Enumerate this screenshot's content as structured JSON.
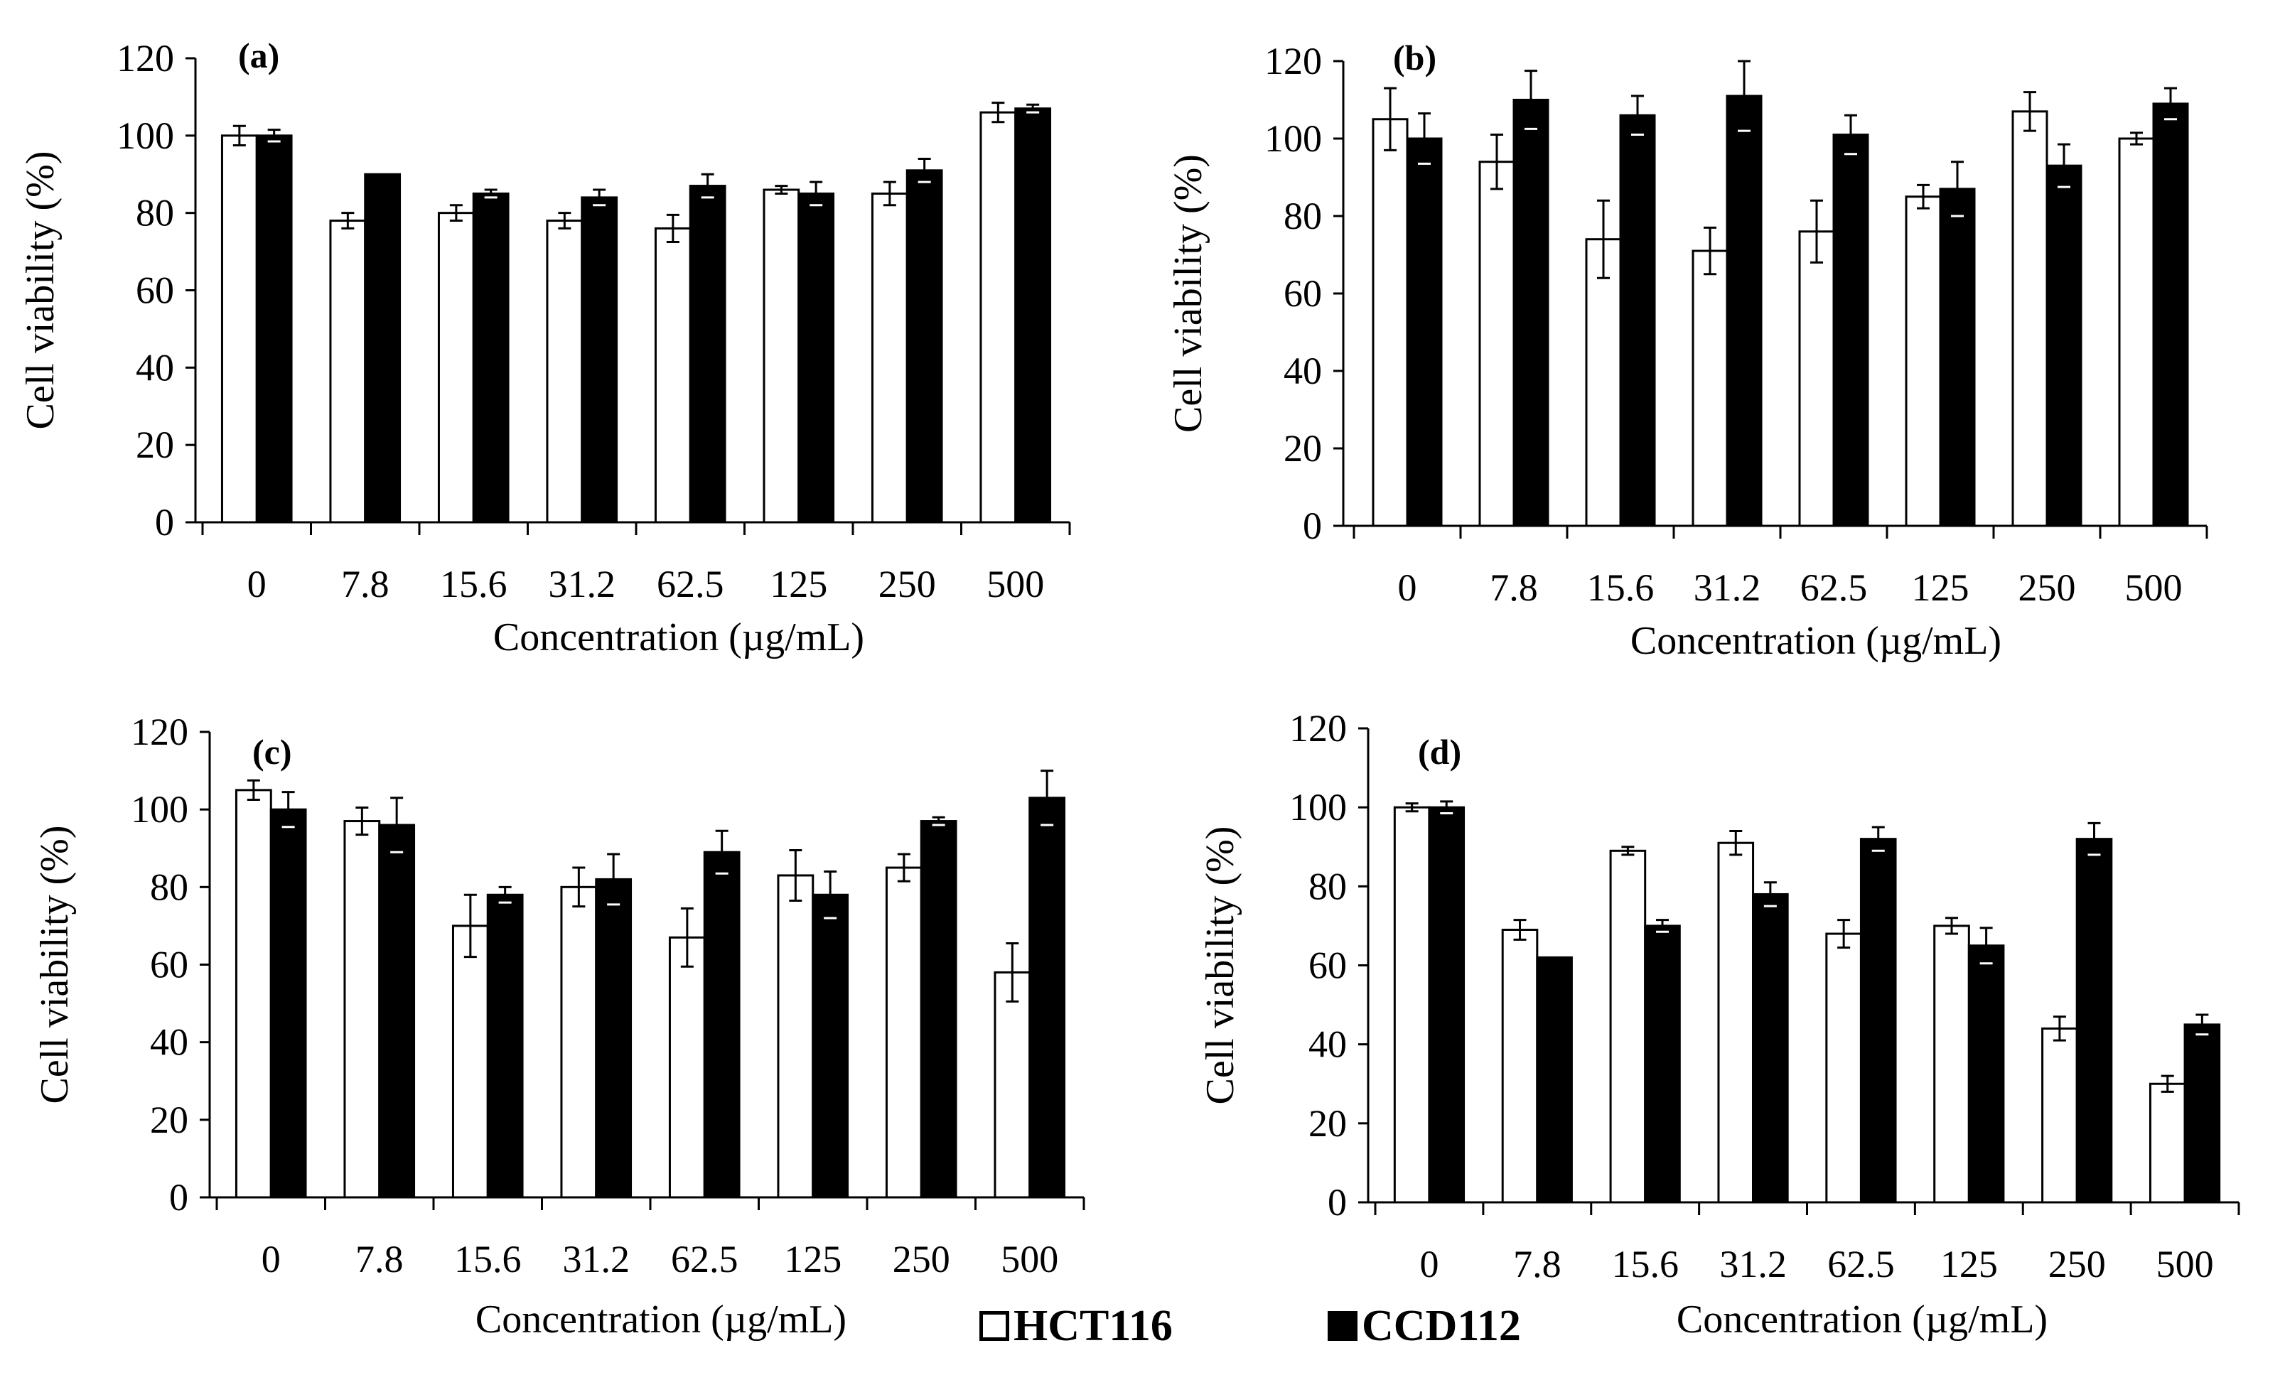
{
  "chart_data": [
    {
      "type": "bar",
      "panel_label": "(a)",
      "categories": [
        "0",
        "7.8",
        "15.6",
        "31.2",
        "62.5",
        "125",
        "250",
        "500"
      ],
      "series": [
        {
          "name": "HCT116",
          "values": [
            100,
            78,
            80,
            78,
            76,
            86,
            85,
            106
          ],
          "errors": [
            2.5,
            2,
            2,
            2,
            3.5,
            1,
            3,
            2.5
          ]
        },
        {
          "name": "CCD112",
          "values": [
            100,
            90,
            85,
            84,
            87,
            85,
            91,
            107
          ],
          "errors": [
            1.5,
            0,
            1,
            2,
            3,
            3,
            3,
            1
          ]
        }
      ],
      "xlabel": "Concentration (µg/mL)",
      "ylabel": "Cell viability (%)",
      "ylim": [
        0,
        120
      ],
      "yticks": [
        "0",
        "20",
        "40",
        "60",
        "80",
        "100",
        "120"
      ]
    },
    {
      "type": "bar",
      "panel_label": "(b)",
      "categories": [
        "0",
        "7.8",
        "15.6",
        "31.2",
        "62.5",
        "125",
        "250",
        "500"
      ],
      "series": [
        {
          "name": "HCT116",
          "values": [
            105,
            94,
            74,
            71,
            76,
            85,
            107,
            100
          ],
          "errors": [
            8,
            7,
            10,
            6,
            8,
            3,
            5,
            1.5
          ]
        },
        {
          "name": "CCD112",
          "values": [
            100,
            110,
            106,
            111,
            101,
            87,
            93,
            109
          ],
          "errors": [
            6.5,
            7.5,
            5,
            9,
            5,
            7,
            5.5,
            4
          ]
        }
      ],
      "xlabel": "Concentration (µg/mL)",
      "ylabel": "Cell viability (%)",
      "ylim": [
        0,
        120
      ],
      "yticks": [
        "0",
        "20",
        "40",
        "60",
        "80",
        "100",
        "120"
      ]
    },
    {
      "type": "bar",
      "panel_label": "(c)",
      "categories": [
        "0",
        "7.8",
        "15.6",
        "31.2",
        "62.5",
        "125",
        "250",
        "500"
      ],
      "series": [
        {
          "name": "HCT116",
          "values": [
            105,
            97,
            70,
            80,
            67,
            83,
            85,
            58
          ],
          "errors": [
            2.5,
            3.5,
            8,
            5,
            7.5,
            6.5,
            3.5,
            7.5
          ]
        },
        {
          "name": "CCD112",
          "values": [
            100,
            96,
            78,
            82,
            89,
            78,
            97,
            103
          ],
          "errors": [
            4.5,
            7,
            2,
            6.5,
            5.5,
            6,
            1,
            7
          ]
        }
      ],
      "xlabel": "Concentration (µg/mL)",
      "ylabel": "Cell viability (%)",
      "ylim": [
        0,
        120
      ],
      "yticks": [
        "0",
        "20",
        "40",
        "60",
        "80",
        "100",
        "120"
      ]
    },
    {
      "type": "bar",
      "panel_label": "(d)",
      "categories": [
        "0",
        "7.8",
        "15.6",
        "31.2",
        "62.5",
        "125",
        "250",
        "500"
      ],
      "series": [
        {
          "name": "HCT116",
          "values": [
            100,
            69,
            89,
            91,
            68,
            70,
            44,
            30
          ],
          "errors": [
            1,
            2.5,
            1,
            3,
            3.5,
            2,
            3,
            2
          ]
        },
        {
          "name": "CCD112",
          "values": [
            100,
            62,
            70,
            78,
            92,
            65,
            92,
            45
          ],
          "errors": [
            1.5,
            0,
            1.5,
            3,
            3,
            4.5,
            4,
            2.5
          ]
        }
      ],
      "xlabel": "Concentration (µg/mL)",
      "ylabel": "Cell viability (%)",
      "ylim": [
        0,
        120
      ],
      "yticks": [
        "0",
        "20",
        "40",
        "60",
        "80",
        "100",
        "120"
      ]
    }
  ],
  "legend": {
    "items": [
      {
        "label": "HCT116",
        "style": "open"
      },
      {
        "label": "CCD112",
        "style": "filled"
      }
    ]
  },
  "colors": {
    "open_fill": "#ffffff",
    "filled_fill": "#000000",
    "stroke": "#000000"
  }
}
